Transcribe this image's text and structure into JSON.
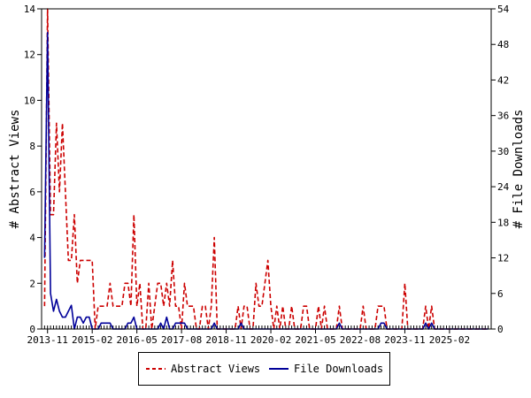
{
  "chart_data": {
    "type": "line",
    "xlabel": "",
    "ylabel": "# Abstract Views",
    "y2label": "# File Downloads",
    "xlim": [
      "2013-09",
      "2026-04"
    ],
    "ylim": [
      0,
      14
    ],
    "y2lim": [
      0,
      54
    ],
    "grid": false,
    "legend_position": "bottom",
    "x_tick_labels": [
      "2013-11",
      "2015-02",
      "2016-05",
      "2017-08",
      "2018-11",
      "2020-02",
      "2021-05",
      "2022-08",
      "2023-11",
      "2025-02"
    ],
    "y_tick_labels": [
      "0",
      "2",
      "4",
      "6",
      "8",
      "10",
      "12",
      "14"
    ],
    "y2_tick_labels": [
      "0",
      "6",
      "12",
      "18",
      "24",
      "30",
      "36",
      "42",
      "48",
      "54"
    ],
    "series": [
      {
        "name": "Abstract Views",
        "axis": "left",
        "color": "#cc0000",
        "dash": "dashed",
        "points": [
          [
            "2013-10",
            1
          ],
          [
            "2013-11",
            14
          ],
          [
            "2013-12",
            5
          ],
          [
            "2014-01",
            5
          ],
          [
            "2014-02",
            9
          ],
          [
            "2014-03",
            6
          ],
          [
            "2014-04",
            9
          ],
          [
            "2014-05",
            6
          ],
          [
            "2014-06",
            3
          ],
          [
            "2014-07",
            3
          ],
          [
            "2014-08",
            5
          ],
          [
            "2014-09",
            2
          ],
          [
            "2014-10",
            3
          ],
          [
            "2014-11",
            3
          ],
          [
            "2014-12",
            3
          ],
          [
            "2015-01",
            3
          ],
          [
            "2015-02",
            3
          ],
          [
            "2015-03",
            0
          ],
          [
            "2015-04",
            1
          ],
          [
            "2015-05",
            1
          ],
          [
            "2015-06",
            1
          ],
          [
            "2015-07",
            1
          ],
          [
            "2015-08",
            2
          ],
          [
            "2015-09",
            1
          ],
          [
            "2015-10",
            1
          ],
          [
            "2015-11",
            1
          ],
          [
            "2015-12",
            1
          ],
          [
            "2016-01",
            2
          ],
          [
            "2016-02",
            2
          ],
          [
            "2016-03",
            1
          ],
          [
            "2016-04",
            5
          ],
          [
            "2016-05",
            1
          ],
          [
            "2016-06",
            2
          ],
          [
            "2016-07",
            0
          ],
          [
            "2016-08",
            0
          ],
          [
            "2016-09",
            2
          ],
          [
            "2016-10",
            0
          ],
          [
            "2016-11",
            1
          ],
          [
            "2016-12",
            2
          ],
          [
            "2017-01",
            2
          ],
          [
            "2017-02",
            1
          ],
          [
            "2017-03",
            2
          ],
          [
            "2017-04",
            1
          ],
          [
            "2017-05",
            3
          ],
          [
            "2017-06",
            1
          ],
          [
            "2017-07",
            1
          ],
          [
            "2017-08",
            0
          ],
          [
            "2017-09",
            2
          ],
          [
            "2017-10",
            1
          ],
          [
            "2017-11",
            1
          ],
          [
            "2017-12",
            1
          ],
          [
            "2018-01",
            0
          ],
          [
            "2018-02",
            0
          ],
          [
            "2018-03",
            1
          ],
          [
            "2018-04",
            1
          ],
          [
            "2018-05",
            0
          ],
          [
            "2018-06",
            1
          ],
          [
            "2018-07",
            4
          ],
          [
            "2018-08",
            0
          ],
          [
            "2018-09",
            0
          ],
          [
            "2018-10",
            0
          ],
          [
            "2018-11",
            0
          ],
          [
            "2018-12",
            0
          ],
          [
            "2019-01",
            0
          ],
          [
            "2019-02",
            0
          ],
          [
            "2019-03",
            1
          ],
          [
            "2019-04",
            0
          ],
          [
            "2019-05",
            1
          ],
          [
            "2019-06",
            1
          ],
          [
            "2019-07",
            0
          ],
          [
            "2019-08",
            0
          ],
          [
            "2019-09",
            2
          ],
          [
            "2019-10",
            1
          ],
          [
            "2019-11",
            1
          ],
          [
            "2019-12",
            2
          ],
          [
            "2020-01",
            3
          ],
          [
            "2020-02",
            1
          ],
          [
            "2020-03",
            0
          ],
          [
            "2020-04",
            1
          ],
          [
            "2020-05",
            0
          ],
          [
            "2020-06",
            1
          ],
          [
            "2020-07",
            0
          ],
          [
            "2020-08",
            0
          ],
          [
            "2020-09",
            1
          ],
          [
            "2020-10",
            0
          ],
          [
            "2020-11",
            0
          ],
          [
            "2020-12",
            0
          ],
          [
            "2021-01",
            1
          ],
          [
            "2021-02",
            1
          ],
          [
            "2021-03",
            0
          ],
          [
            "2021-04",
            0
          ],
          [
            "2021-05",
            0
          ],
          [
            "2021-06",
            1
          ],
          [
            "2021-07",
            0
          ],
          [
            "2021-08",
            1
          ],
          [
            "2021-09",
            0
          ],
          [
            "2021-10",
            0
          ],
          [
            "2021-11",
            0
          ],
          [
            "2021-12",
            0
          ],
          [
            "2022-01",
            1
          ],
          [
            "2022-02",
            0
          ],
          [
            "2022-03",
            0
          ],
          [
            "2022-04",
            0
          ],
          [
            "2022-05",
            0
          ],
          [
            "2022-06",
            0
          ],
          [
            "2022-07",
            0
          ],
          [
            "2022-08",
            0
          ],
          [
            "2022-09",
            1
          ],
          [
            "2022-10",
            0
          ],
          [
            "2022-11",
            0
          ],
          [
            "2022-12",
            0
          ],
          [
            "2023-01",
            0
          ],
          [
            "2023-02",
            1
          ],
          [
            "2023-03",
            1
          ],
          [
            "2023-04",
            1
          ],
          [
            "2023-05",
            0
          ],
          [
            "2023-06",
            0
          ],
          [
            "2023-07",
            0
          ],
          [
            "2023-08",
            0
          ],
          [
            "2023-09",
            0
          ],
          [
            "2023-10",
            0
          ],
          [
            "2023-11",
            2
          ],
          [
            "2023-12",
            0
          ],
          [
            "2024-01",
            0
          ],
          [
            "2024-02",
            0
          ],
          [
            "2024-03",
            0
          ],
          [
            "2024-04",
            0
          ],
          [
            "2024-05",
            0
          ],
          [
            "2024-06",
            1
          ],
          [
            "2024-07",
            0
          ],
          [
            "2024-08",
            1
          ],
          [
            "2024-09",
            0
          ],
          [
            "2024-10",
            0
          ],
          [
            "2024-11",
            0
          ],
          [
            "2024-12",
            0
          ],
          [
            "2025-01",
            0
          ],
          [
            "2025-02",
            0
          ],
          [
            "2025-03",
            0
          ],
          [
            "2025-04",
            0
          ],
          [
            "2025-05",
            0
          ],
          [
            "2025-06",
            0
          ],
          [
            "2025-07",
            0
          ],
          [
            "2025-08",
            0
          ],
          [
            "2025-09",
            0
          ],
          [
            "2025-10",
            0
          ],
          [
            "2025-11",
            0
          ],
          [
            "2025-12",
            0
          ],
          [
            "2026-01",
            0
          ],
          [
            "2026-02",
            0
          ],
          [
            "2026-03",
            0
          ]
        ]
      },
      {
        "name": "File Downloads",
        "axis": "right",
        "color": "#000099",
        "dash": "solid",
        "points": [
          [
            "2013-10",
            12
          ],
          [
            "2013-11",
            50
          ],
          [
            "2013-12",
            6
          ],
          [
            "2014-01",
            3
          ],
          [
            "2014-02",
            5
          ],
          [
            "2014-03",
            3
          ],
          [
            "2014-04",
            2
          ],
          [
            "2014-05",
            2
          ],
          [
            "2014-06",
            3
          ],
          [
            "2014-07",
            4
          ],
          [
            "2014-08",
            0
          ],
          [
            "2014-09",
            2
          ],
          [
            "2014-10",
            2
          ],
          [
            "2014-11",
            1
          ],
          [
            "2014-12",
            2
          ],
          [
            "2015-01",
            2
          ],
          [
            "2015-02",
            0
          ],
          [
            "2015-03",
            0
          ],
          [
            "2015-04",
            0
          ],
          [
            "2015-05",
            1
          ],
          [
            "2015-06",
            1
          ],
          [
            "2015-07",
            1
          ],
          [
            "2015-08",
            1
          ],
          [
            "2015-09",
            0
          ],
          [
            "2015-10",
            0
          ],
          [
            "2015-11",
            0
          ],
          [
            "2015-12",
            0
          ],
          [
            "2016-01",
            0
          ],
          [
            "2016-02",
            1
          ],
          [
            "2016-03",
            1
          ],
          [
            "2016-04",
            2
          ],
          [
            "2016-05",
            0
          ],
          [
            "2016-06",
            0
          ],
          [
            "2016-07",
            0
          ],
          [
            "2016-08",
            0
          ],
          [
            "2016-09",
            0
          ],
          [
            "2016-10",
            0
          ],
          [
            "2016-11",
            0
          ],
          [
            "2016-12",
            0
          ],
          [
            "2017-01",
            1
          ],
          [
            "2017-02",
            0
          ],
          [
            "2017-03",
            2
          ],
          [
            "2017-04",
            0
          ],
          [
            "2017-05",
            0
          ],
          [
            "2017-06",
            1
          ],
          [
            "2017-07",
            1
          ],
          [
            "2017-08",
            1
          ],
          [
            "2017-09",
            1
          ],
          [
            "2017-10",
            0
          ],
          [
            "2017-11",
            0
          ],
          [
            "2017-12",
            0
          ],
          [
            "2018-01",
            0
          ],
          [
            "2018-02",
            0
          ],
          [
            "2018-03",
            0
          ],
          [
            "2018-04",
            0
          ],
          [
            "2018-05",
            0
          ],
          [
            "2018-06",
            0
          ],
          [
            "2018-07",
            1
          ],
          [
            "2018-08",
            0
          ],
          [
            "2018-09",
            0
          ],
          [
            "2018-10",
            0
          ],
          [
            "2018-11",
            0
          ],
          [
            "2018-12",
            0
          ],
          [
            "2019-01",
            0
          ],
          [
            "2019-02",
            0
          ],
          [
            "2019-03",
            0
          ],
          [
            "2019-04",
            1
          ],
          [
            "2019-05",
            0
          ],
          [
            "2019-06",
            0
          ],
          [
            "2019-07",
            0
          ],
          [
            "2019-08",
            0
          ],
          [
            "2019-09",
            0
          ],
          [
            "2019-10",
            0
          ],
          [
            "2019-11",
            0
          ],
          [
            "2019-12",
            0
          ],
          [
            "2020-01",
            0
          ],
          [
            "2020-02",
            0
          ],
          [
            "2020-03",
            0
          ],
          [
            "2020-04",
            0
          ],
          [
            "2020-05",
            0
          ],
          [
            "2020-06",
            0
          ],
          [
            "2020-07",
            0
          ],
          [
            "2020-08",
            0
          ],
          [
            "2020-09",
            0
          ],
          [
            "2020-10",
            0
          ],
          [
            "2020-11",
            0
          ],
          [
            "2020-12",
            0
          ],
          [
            "2021-01",
            0
          ],
          [
            "2021-02",
            0
          ],
          [
            "2021-03",
            0
          ],
          [
            "2021-04",
            0
          ],
          [
            "2021-05",
            0
          ],
          [
            "2021-06",
            0
          ],
          [
            "2021-07",
            0
          ],
          [
            "2021-08",
            0
          ],
          [
            "2021-09",
            0
          ],
          [
            "2021-10",
            0
          ],
          [
            "2021-11",
            0
          ],
          [
            "2021-12",
            0
          ],
          [
            "2022-01",
            1
          ],
          [
            "2022-02",
            0
          ],
          [
            "2022-03",
            0
          ],
          [
            "2022-04",
            0
          ],
          [
            "2022-05",
            0
          ],
          [
            "2022-06",
            0
          ],
          [
            "2022-07",
            0
          ],
          [
            "2022-08",
            0
          ],
          [
            "2022-09",
            0
          ],
          [
            "2022-10",
            0
          ],
          [
            "2022-11",
            0
          ],
          [
            "2022-12",
            0
          ],
          [
            "2023-01",
            0
          ],
          [
            "2023-02",
            0
          ],
          [
            "2023-03",
            1
          ],
          [
            "2023-04",
            1
          ],
          [
            "2023-05",
            0
          ],
          [
            "2023-06",
            0
          ],
          [
            "2023-07",
            0
          ],
          [
            "2023-08",
            0
          ],
          [
            "2023-09",
            0
          ],
          [
            "2023-10",
            0
          ],
          [
            "2023-11",
            0
          ],
          [
            "2023-12",
            0
          ],
          [
            "2024-01",
            0
          ],
          [
            "2024-02",
            0
          ],
          [
            "2024-03",
            0
          ],
          [
            "2024-04",
            0
          ],
          [
            "2024-05",
            0
          ],
          [
            "2024-06",
            1
          ],
          [
            "2024-07",
            0
          ],
          [
            "2024-08",
            1
          ],
          [
            "2024-09",
            0
          ],
          [
            "2024-10",
            0
          ],
          [
            "2024-11",
            0
          ],
          [
            "2024-12",
            0
          ],
          [
            "2025-01",
            0
          ],
          [
            "2025-02",
            0
          ],
          [
            "2025-03",
            0
          ],
          [
            "2025-04",
            0
          ],
          [
            "2025-05",
            0
          ],
          [
            "2025-06",
            0
          ],
          [
            "2025-07",
            0
          ],
          [
            "2025-08",
            0
          ],
          [
            "2025-09",
            0
          ],
          [
            "2025-10",
            0
          ],
          [
            "2025-11",
            0
          ],
          [
            "2025-12",
            0
          ],
          [
            "2026-01",
            0
          ],
          [
            "2026-02",
            0
          ],
          [
            "2026-03",
            0
          ]
        ]
      }
    ]
  }
}
